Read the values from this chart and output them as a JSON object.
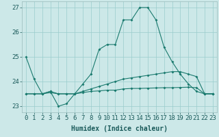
{
  "xlabel": "Humidex (Indice chaleur)",
  "x": [
    0,
    1,
    2,
    3,
    4,
    5,
    6,
    7,
    8,
    9,
    10,
    11,
    12,
    13,
    14,
    15,
    16,
    17,
    18,
    19,
    20,
    21,
    22,
    23
  ],
  "line1": [
    25.0,
    24.1,
    23.5,
    23.6,
    23.0,
    23.1,
    23.5,
    23.9,
    24.3,
    25.3,
    25.5,
    25.5,
    26.5,
    26.5,
    27.0,
    27.0,
    26.5,
    25.4,
    24.8,
    24.3,
    23.9,
    23.6,
    23.5,
    23.5
  ],
  "line2": [
    23.5,
    23.5,
    23.5,
    23.6,
    23.5,
    23.5,
    23.5,
    23.6,
    23.7,
    23.8,
    23.9,
    24.0,
    24.1,
    24.15,
    24.2,
    24.25,
    24.3,
    24.35,
    24.4,
    24.4,
    24.3,
    24.2,
    23.5,
    23.5
  ],
  "line3": [
    23.5,
    23.5,
    23.5,
    23.55,
    23.5,
    23.5,
    23.5,
    23.55,
    23.6,
    23.62,
    23.65,
    23.65,
    23.7,
    23.72,
    23.72,
    23.73,
    23.74,
    23.75,
    23.75,
    23.76,
    23.77,
    23.75,
    23.5,
    23.5
  ],
  "line_color": "#1a7a6e",
  "bg_color": "#cce8e8",
  "grid_color": "#99cccc",
  "ylim": [
    22.75,
    27.25
  ],
  "yticks": [
    23,
    24,
    25,
    26,
    27
  ],
  "tick_fontsize": 6.5,
  "xlabel_fontsize": 7
}
